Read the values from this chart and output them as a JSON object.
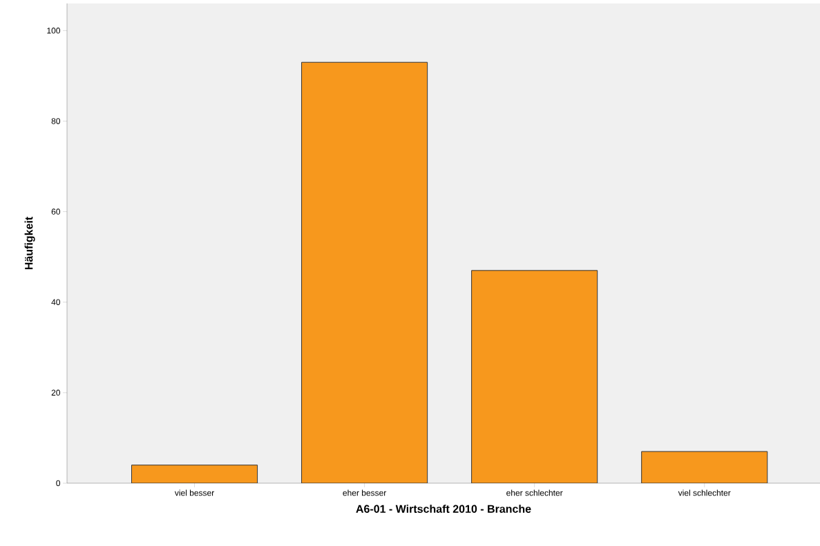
{
  "chart_data": {
    "type": "bar",
    "xlabel": "A6-01 - Wirtschaft 2010 - Branche",
    "ylabel": "Häufigkeit",
    "categories": [
      "viel besser",
      "eher besser",
      "eher schlechter",
      "viel schlechter"
    ],
    "values": [
      4,
      93,
      47,
      7
    ],
    "color": "#f7981d",
    "ylim": [
      0,
      106
    ],
    "yticks": [
      0,
      20,
      40,
      60,
      80,
      100
    ],
    "grid": false
  }
}
